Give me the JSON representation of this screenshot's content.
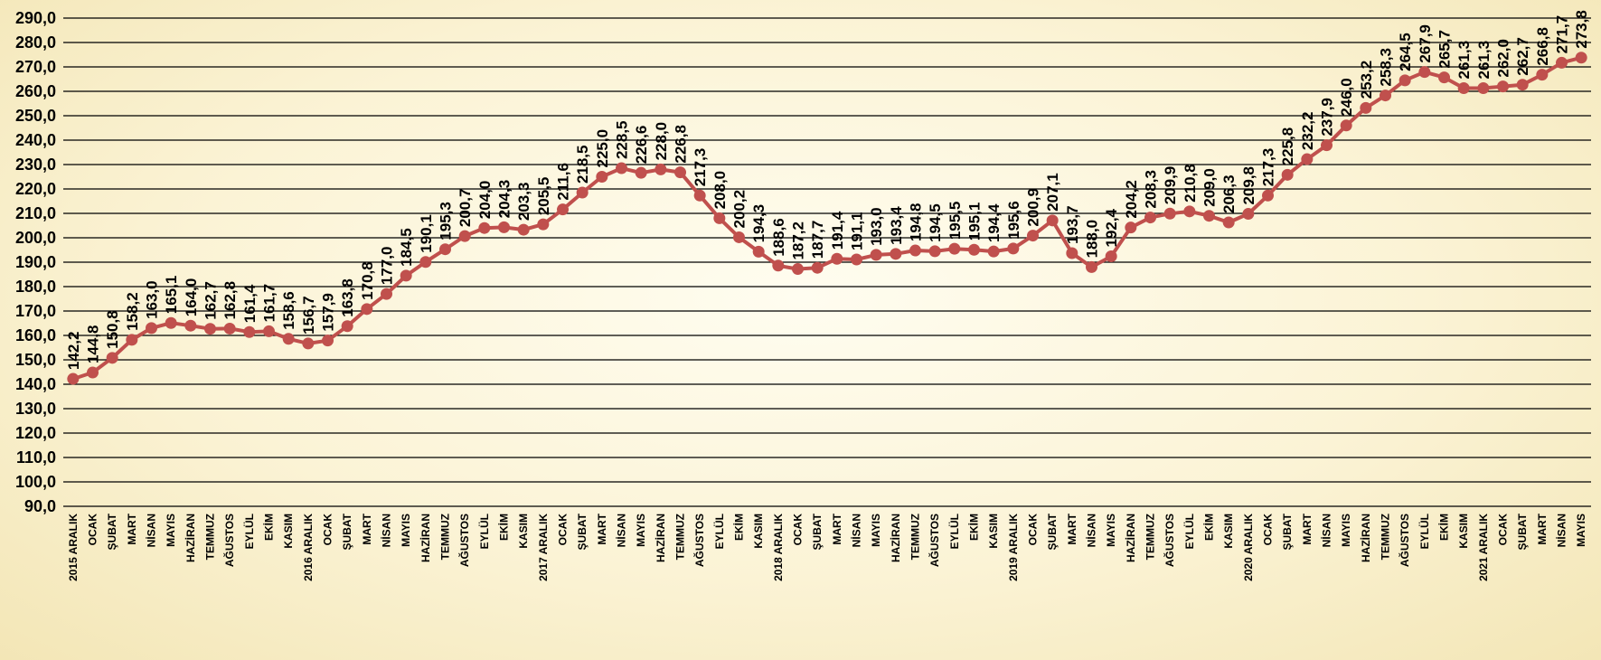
{
  "chart_data": {
    "type": "line",
    "title": "",
    "xlabel": "",
    "ylabel": "",
    "ylim": [
      90,
      290
    ],
    "y_step": 10,
    "y_tick_labels": [
      "90,0",
      "100,0",
      "110,0",
      "120,0",
      "130,0",
      "140,0",
      "150,0",
      "160,0",
      "170,0",
      "180,0",
      "190,0",
      "200,0",
      "210,0",
      "220,0",
      "230,0",
      "240,0",
      "250,0",
      "260,0",
      "270,0",
      "280,0",
      "290,0"
    ],
    "grid": true,
    "legend": "none",
    "line_color": "#c0504d",
    "categories": [
      "2015 ARALIK",
      "OCAK",
      "ŞUBAT",
      "MART",
      "NİSAN",
      "MAYIS",
      "HAZİRAN",
      "TEMMUZ",
      "AĞUSTOS",
      "EYLÜL",
      "EKİM",
      "KASIM",
      "2016 ARALIK",
      "OCAK",
      "ŞUBAT",
      "MART",
      "NİSAN",
      "MAYIS",
      "HAZİRAN",
      "TEMMUZ",
      "AĞUSTOS",
      "EYLÜL",
      "EKİM",
      "KASIM",
      "2017 ARALIK",
      "OCAK",
      "ŞUBAT",
      "MART",
      "NİSAN",
      "MAYIS",
      "HAZİRAN",
      "TEMMUZ",
      "AĞUSTOS",
      "EYLÜL",
      "EKİM",
      "KASIM",
      "2018 ARALIK",
      "OCAK",
      "ŞUBAT",
      "MART",
      "NİSAN",
      "MAYIS",
      "HAZİRAN",
      "TEMMUZ",
      "AĞUSTOS",
      "EYLÜL",
      "EKİM",
      "KASIM",
      "2019 ARALIK",
      "OCAK",
      "ŞUBAT",
      "MART",
      "NİSAN",
      "MAYIS",
      "HAZİRAN",
      "TEMMUZ",
      "AĞUSTOS",
      "EYLÜL",
      "EKİM",
      "KASIM",
      "2020 ARALIK",
      "OCAK",
      "ŞUBAT",
      "MART",
      "NİSAN",
      "MAYIS",
      "HAZİRAN",
      "TEMMUZ",
      "AĞUSTOS",
      "EYLÜL",
      "EKİM",
      "KASIM",
      "2021 ARALIK",
      "OCAK",
      "ŞUBAT",
      "MART",
      "NİSAN",
      "MAYIS"
    ],
    "values": [
      142.2,
      144.8,
      150.8,
      158.2,
      163.0,
      165.1,
      164.0,
      162.7,
      162.8,
      161.4,
      161.7,
      158.6,
      156.7,
      157.9,
      163.8,
      170.8,
      177.0,
      184.5,
      190.1,
      195.3,
      200.7,
      204.0,
      204.3,
      203.3,
      205.5,
      211.6,
      218.5,
      225.0,
      228.5,
      226.6,
      228.0,
      226.8,
      217.3,
      208.0,
      200.2,
      194.3,
      188.6,
      187.2,
      187.7,
      191.4,
      191.1,
      193.0,
      193.4,
      194.8,
      194.5,
      195.5,
      195.1,
      194.4,
      195.6,
      200.9,
      207.1,
      193.7,
      188.0,
      192.4,
      204.2,
      208.3,
      209.9,
      210.8,
      209.0,
      206.3,
      209.8,
      217.3,
      225.8,
      232.2,
      237.9,
      246.0,
      253.2,
      258.3,
      264.5,
      267.9,
      265.7,
      261.3,
      261.3,
      262.0,
      262.7,
      266.8,
      271.7,
      273.8
    ],
    "data_labels": [
      "142,2",
      "144,8",
      "150,8",
      "158,2",
      "163,0",
      "165,1",
      "164,0",
      "162,7",
      "162,8",
      "161,4",
      "161,7",
      "158,6",
      "156,7",
      "157,9",
      "163,8",
      "170,8",
      "177,0",
      "184,5",
      "190,1",
      "195,3",
      "200,7",
      "204,0",
      "204,3",
      "203,3",
      "205,5",
      "211,6",
      "218,5",
      "225,0",
      "228,5",
      "226,6",
      "228,0",
      "226,8",
      "217,3",
      "208,0",
      "200,2",
      "194,3",
      "188,6",
      "187,2",
      "187,7",
      "191,4",
      "191,1",
      "193,0",
      "193,4",
      "194,8",
      "194,5",
      "195,5",
      "195,1",
      "194,4",
      "195,6",
      "200,9",
      "207,1",
      "193,7",
      "188,0",
      "192,4",
      "204,2",
      "208,3",
      "209,9",
      "210,8",
      "209,0",
      "206,3",
      "209,8",
      "217,3",
      "225,8",
      "232,2",
      "237,9",
      "246,0",
      "253,2",
      "258,3",
      "264,5",
      "267,9",
      "265,7",
      "261,3",
      "261,3",
      "262,0",
      "262,7",
      "266,8",
      "271,7",
      "273,8"
    ]
  }
}
